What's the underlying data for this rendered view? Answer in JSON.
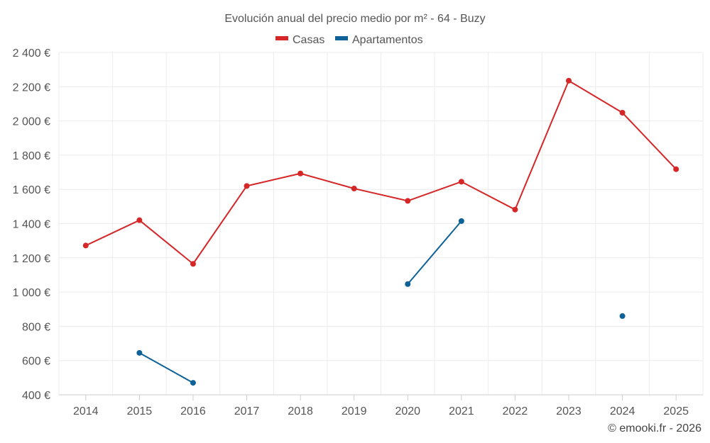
{
  "chart_data": {
    "type": "line",
    "title": "Evolución anual del precio medio por m² - 64 - Buzy",
    "categories": [
      "2014",
      "2015",
      "2016",
      "2017",
      "2018",
      "2019",
      "2020",
      "2021",
      "2022",
      "2023",
      "2024",
      "2025"
    ],
    "ylim": [
      400,
      2400
    ],
    "yticks": [
      400,
      600,
      800,
      1000,
      1200,
      1400,
      1600,
      1800,
      2000,
      2200,
      2400
    ],
    "ytick_labels": [
      "400 €",
      "600 €",
      "800 €",
      "1 000 €",
      "1 200 €",
      "1 400 €",
      "1 600 €",
      "1 800 €",
      "2 000 €",
      "2 200 €",
      "2 400 €"
    ],
    "grid": true,
    "legend_position": "top-center",
    "series": [
      {
        "name": "Casas",
        "color": "#d62728",
        "values": [
          1272,
          1420,
          1165,
          1620,
          1693,
          1605,
          1533,
          1645,
          1482,
          2235,
          2048,
          1718
        ]
      },
      {
        "name": "Apartamentos",
        "color": "#0e6298",
        "values": [
          null,
          645,
          470,
          null,
          null,
          null,
          1047,
          1415,
          null,
          null,
          860,
          null
        ]
      }
    ]
  },
  "credit": "© emooki.fr - 2026"
}
